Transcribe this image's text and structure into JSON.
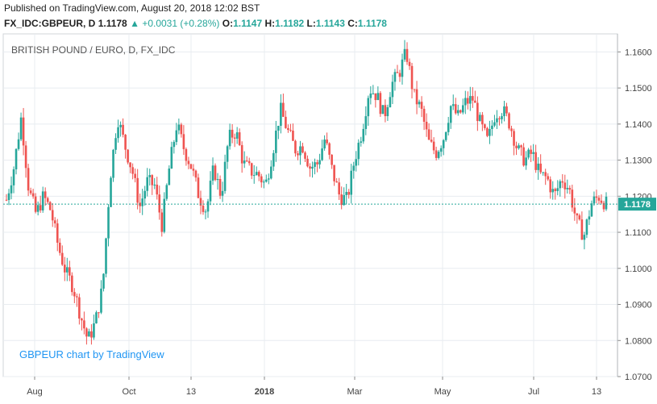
{
  "header": {
    "published": "Published on TradingView.com, August 20, 2018 12:02 BST",
    "symbol": "FX_IDC:GBPEUR, D",
    "last": "1.1178",
    "change": "+0.0031 (+0.28%)",
    "o_label": "O:",
    "o_value": "1.1147",
    "h_label": "H:",
    "h_value": "1.1182",
    "l_label": "L:",
    "l_value": "1.1143",
    "c_label": "C:",
    "c_value": "1.1178"
  },
  "colors": {
    "up": "#26a69a",
    "down": "#ef5350",
    "grid": "#e8ecf0",
    "axis_text": "#444",
    "last_line": "#26a69a",
    "watermark": "#2196f3"
  },
  "chart_data": {
    "type": "candlestick",
    "title": "BRITISH POUND / EURO, D, FX_IDC",
    "watermark": "GBPEUR chart by TradingView",
    "ylim": [
      1.07,
      1.165
    ],
    "yticks": [
      "1.1600",
      "1.1500",
      "1.1400",
      "1.1300",
      "1.1200",
      "1.1100",
      "1.1000",
      "1.0900",
      "1.0800",
      "1.0700"
    ],
    "xticks": [
      "Aug",
      "Oct",
      "13",
      "2018",
      "Mar",
      "May",
      "Jul",
      "13"
    ],
    "last_price": "1.1178",
    "grid": true,
    "series": [
      {
        "name": "GBPEUR",
        "anchors": [
          1.119,
          1.128,
          1.142,
          1.122,
          1.115,
          1.12,
          1.116,
          1.106,
          1.099,
          1.095,
          1.087,
          1.08,
          1.085,
          1.095,
          1.125,
          1.142,
          1.134,
          1.127,
          1.117,
          1.124,
          1.123,
          1.112,
          1.128,
          1.14,
          1.133,
          1.128,
          1.12,
          1.116,
          1.128,
          1.12,
          1.136,
          1.138,
          1.129,
          1.127,
          1.126,
          1.123,
          1.133,
          1.144,
          1.138,
          1.133,
          1.134,
          1.128,
          1.129,
          1.136,
          1.127,
          1.12,
          1.119,
          1.13,
          1.138,
          1.15,
          1.148,
          1.142,
          1.151,
          1.154,
          1.16,
          1.148,
          1.144,
          1.135,
          1.132,
          1.136,
          1.145,
          1.142,
          1.146,
          1.147,
          1.14,
          1.135,
          1.143,
          1.144,
          1.14,
          1.133,
          1.13,
          1.132,
          1.126,
          1.125,
          1.12,
          1.125,
          1.122,
          1.113,
          1.109,
          1.118,
          1.12,
          1.1178
        ]
      }
    ]
  }
}
